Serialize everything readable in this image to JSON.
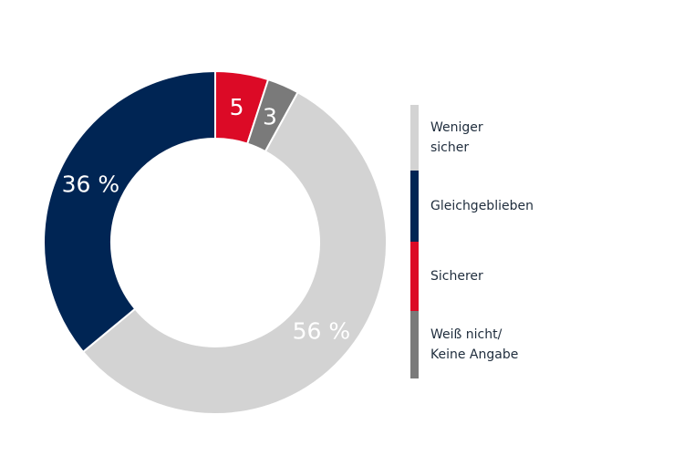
{
  "chart_data": {
    "type": "pie",
    "donut": true,
    "categories": [
      "Weniger\nsicher",
      "Gleichgeblieben",
      "Sicherer",
      "Weiß nicht/\nKeine Angabe"
    ],
    "values": [
      56,
      36,
      5,
      3
    ],
    "data_labels": [
      "56 %",
      "36 %",
      "5",
      "3"
    ],
    "colors": [
      "#d3d3d3",
      "#002554",
      "#dc0a26",
      "#7a7a7a"
    ],
    "legend_placement": "right"
  }
}
